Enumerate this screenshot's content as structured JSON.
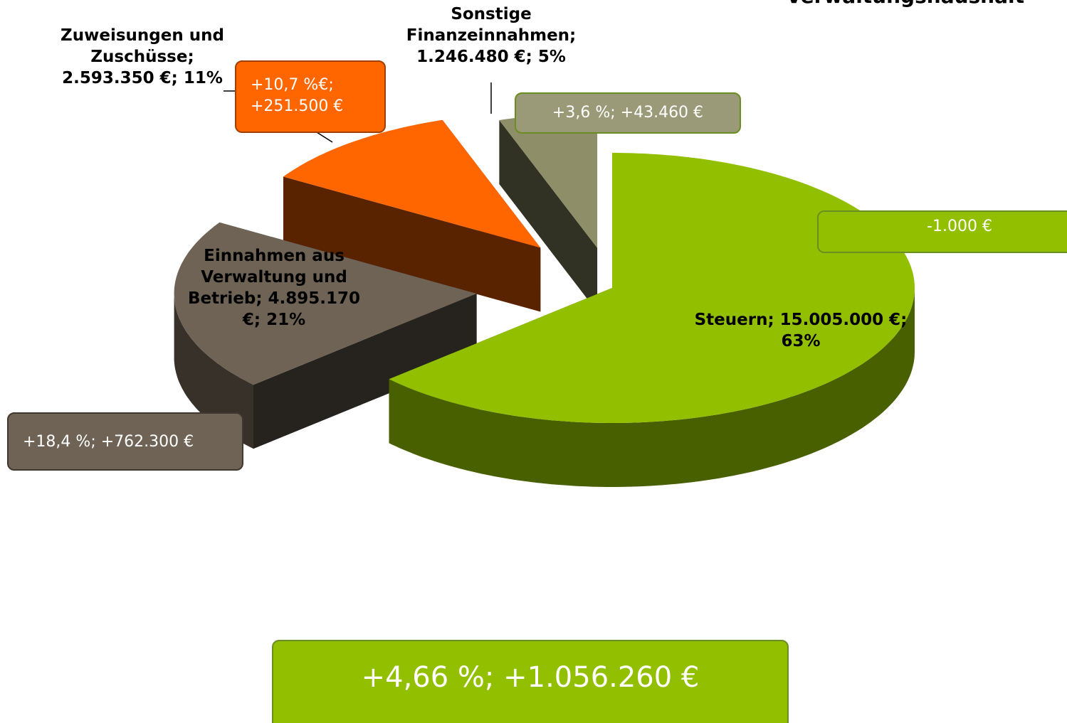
{
  "chart_data": {
    "type": "pie3d",
    "title": "Verwaltungshaushalt",
    "categories": [
      "Steuern",
      "Einnahmen aus Verwaltung und Betrieb",
      "Zuweisungen und Zuschüsse",
      "Sonstige Finanzeinnahmen"
    ],
    "values": [
      15005000,
      4895170,
      2593350,
      1246480
    ],
    "value_labels": [
      "Steuern; 15.005.000 €; 63%",
      "Einnahmen aus Verwaltung und Betrieb; 4.895.170 €; 21%",
      "Zuweisungen und Zuschüsse; 2.593.350 €; 11%",
      "Sonstige Finanzeinnahmen; 1.246.480 €; 5%"
    ],
    "colors": [
      "#92c000",
      "#6e6354",
      "#ff6600",
      "#8e8e68"
    ],
    "annotations": [
      "-1.000 €",
      "+18,4 %;  +762.300 €",
      "+10,7 %€; +251.500 €",
      "+3,6 %; +43.460 €",
      "+4,66 %; +1.056.260 €"
    ]
  }
}
